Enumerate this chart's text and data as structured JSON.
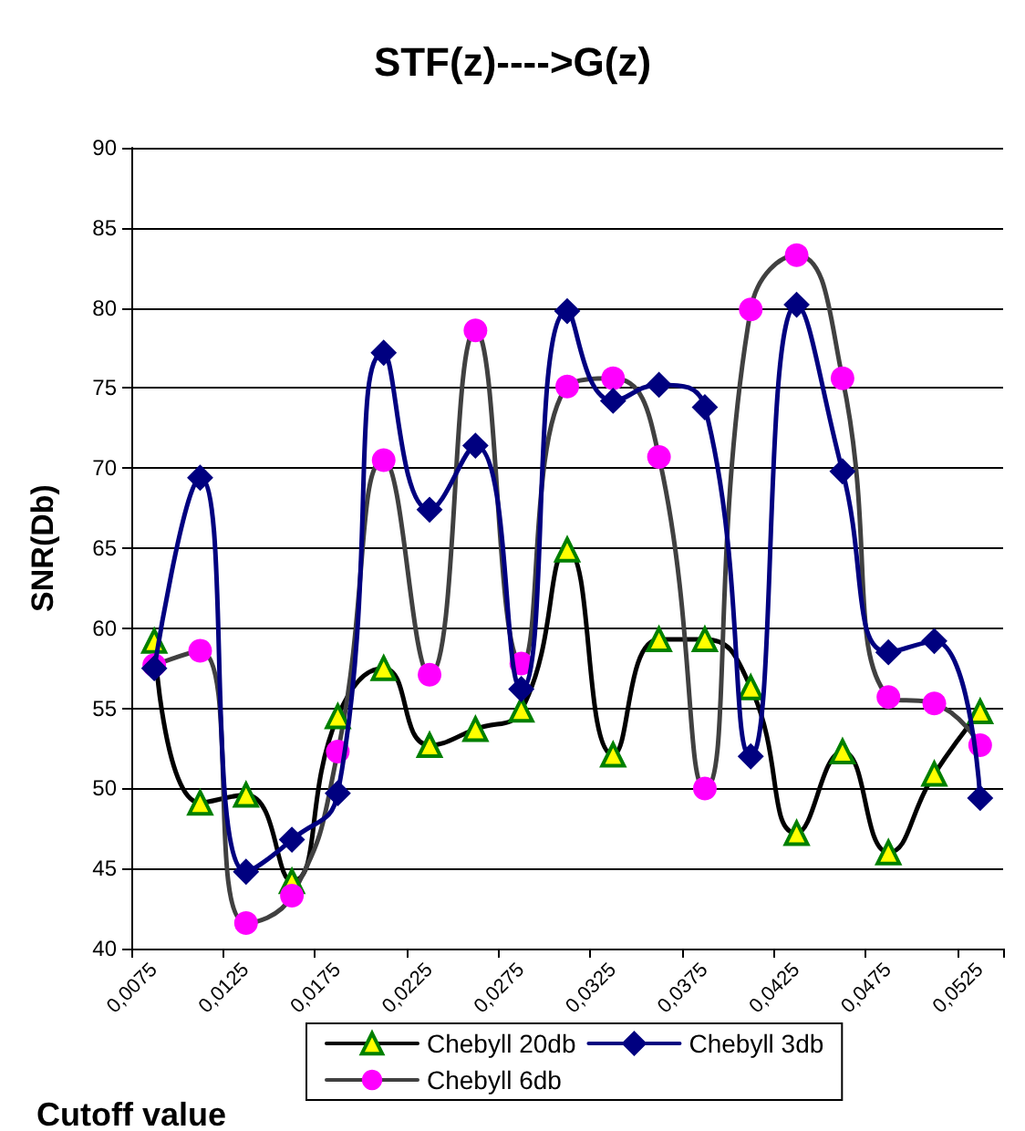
{
  "chart_data": {
    "type": "line",
    "title": "STF(z)---->G(z)",
    "xlabel": "Cutoff value",
    "ylabel": "SNR(Db)",
    "categories": [
      "0,0075",
      null,
      "0,0125",
      null,
      "0,0175",
      null,
      "0,0225",
      null,
      "0,0275",
      null,
      "0,0325",
      null,
      "0,0375",
      null,
      "0,0425",
      null,
      "0,0475",
      null,
      "0,0525"
    ],
    "series": [
      {
        "name": "Chebyll 20db",
        "color": "#000000",
        "marker": "triangle",
        "values": [
          59.2,
          49.1,
          49.6,
          44.2,
          54.5,
          57.5,
          52.7,
          53.7,
          54.9,
          64.9,
          52.1,
          59.3,
          59.3,
          56.3,
          47.2,
          52.3,
          46.0,
          50.9,
          54.8
        ]
      },
      {
        "name": "Chebyll 3db",
        "color": "#000080",
        "marker": "diamond",
        "values": [
          57.5,
          69.4,
          44.8,
          46.8,
          49.7,
          77.2,
          67.4,
          71.4,
          56.2,
          79.8,
          74.2,
          75.2,
          73.8,
          52.0,
          80.2,
          69.8,
          58.5,
          59.2,
          49.4
        ]
      },
      {
        "name": "Chebyll 6db",
        "color": "#404040",
        "marker": "circle",
        "values": [
          57.7,
          58.6,
          41.6,
          43.3,
          52.3,
          70.5,
          57.1,
          78.6,
          57.8,
          75.1,
          75.6,
          70.7,
          50.0,
          79.9,
          83.3,
          75.6,
          55.7,
          55.3,
          52.7
        ]
      }
    ],
    "ylim": [
      40,
      90
    ],
    "yticks": [
      40,
      45,
      50,
      55,
      60,
      65,
      70,
      75,
      80,
      85,
      90
    ],
    "grid": "y",
    "legend": "bottom",
    "line_style": "solid"
  }
}
